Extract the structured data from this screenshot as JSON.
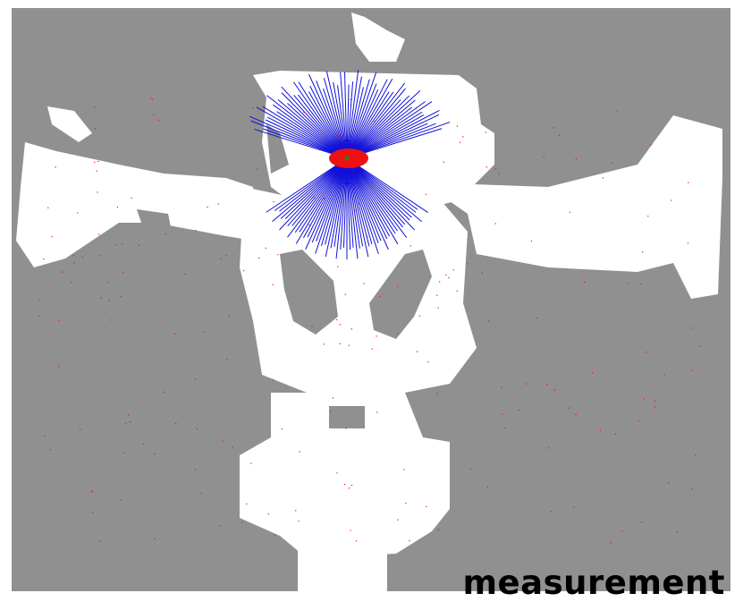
{
  "caption": "measurement",
  "colors": {
    "unknown": "#909090",
    "free_space": "#ffffff",
    "laser_beams": "#1010d8",
    "particles": "#ee1111",
    "robot": "#1a8a1a"
  },
  "elements": [
    "occupancy-grid-map",
    "laser-scan-fan",
    "particle-cloud",
    "robot-pose-marker"
  ]
}
